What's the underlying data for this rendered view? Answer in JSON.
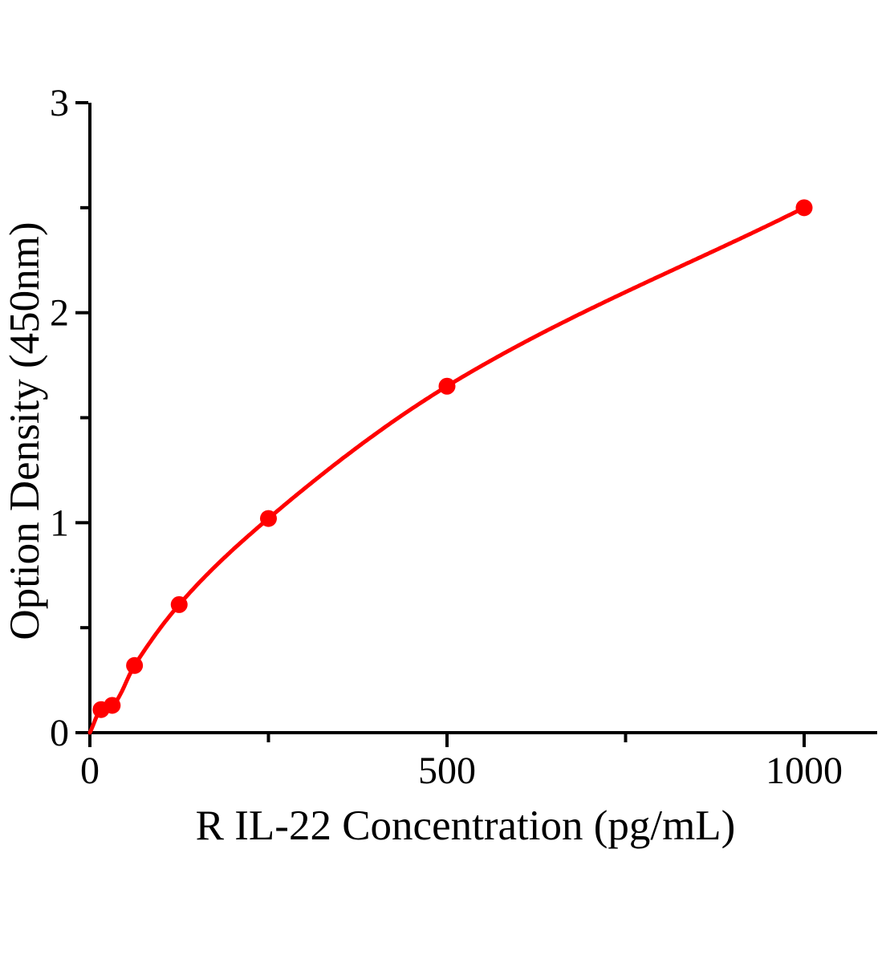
{
  "page": {
    "background_color": "#ffffff"
  },
  "chart_data": {
    "type": "line",
    "title": "",
    "xlabel": "R IL-22 Concentration (pg/mL)",
    "ylabel": "Option Density（450nm）",
    "x": [
      15.625,
      31.25,
      62.5,
      125,
      250,
      500,
      1000
    ],
    "y": [
      0.11,
      0.13,
      0.32,
      0.61,
      1.02,
      1.65,
      2.5
    ],
    "curve_origin": [
      0,
      0
    ],
    "xlim": [
      0,
      1102
    ],
    "ylim": [
      0,
      3
    ],
    "x_major_ticks": [
      0,
      500,
      1000
    ],
    "x_tick_labels": [
      "0",
      "500",
      "1000"
    ],
    "x_minor_ticks": [
      250,
      750
    ],
    "y_major_ticks": [
      0,
      1,
      2,
      3
    ],
    "y_tick_labels": [
      "0",
      "1",
      "2",
      "3"
    ],
    "y_minor_ticks": [
      0.5,
      1.5,
      2.5
    ],
    "grid": false,
    "legend": false,
    "marker": "circle",
    "line_color": "#ff0000",
    "marker_color": "#ff0000",
    "axis_color": "#000000"
  }
}
